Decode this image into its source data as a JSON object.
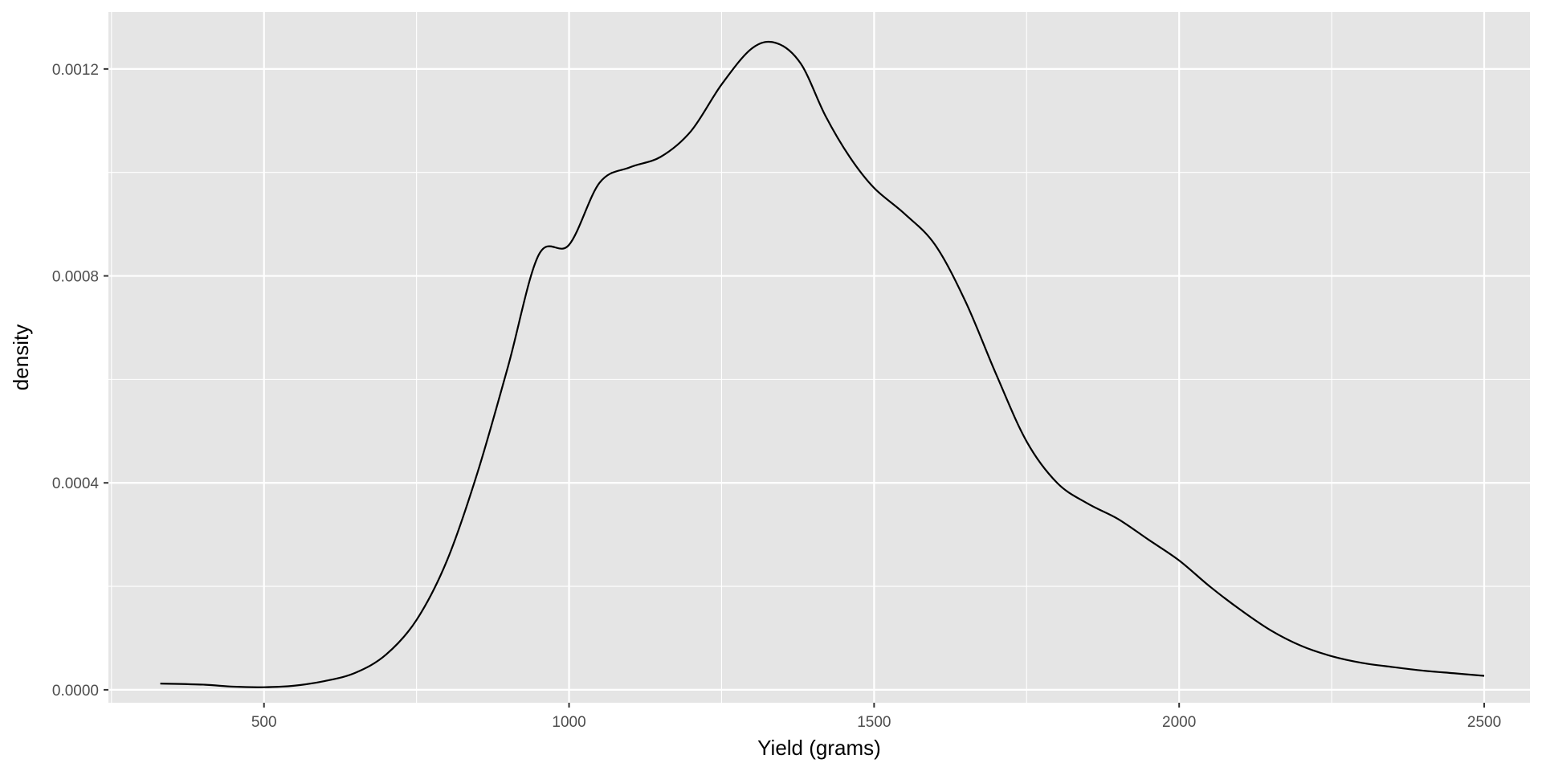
{
  "chart_data": {
    "type": "area",
    "subtype": "density",
    "xlabel": "Yield (grams)",
    "ylabel": "density",
    "xlim": [
      245,
      2575
    ],
    "ylim": [
      -2.5e-05,
      0.00131
    ],
    "x_ticks": [
      500,
      1000,
      1500,
      2000,
      2500
    ],
    "x_tick_labels": [
      "500",
      "1000",
      "1500",
      "2000",
      "2500"
    ],
    "y_ticks": [
      0.0,
      0.0004,
      0.0008,
      0.0012
    ],
    "y_tick_labels": [
      "0.0000",
      "0.0004",
      "0.0008",
      "0.0012"
    ],
    "grid": true,
    "legend": "none",
    "colors": {
      "panel": "#e5e5e5",
      "grid": "#ffffff",
      "line": "#000000",
      "text": "#4d4d4d"
    },
    "series": [
      {
        "x": [
          330,
          400,
          450,
          500,
          550,
          600,
          650,
          700,
          750,
          800,
          850,
          900,
          950,
          1000,
          1050,
          1100,
          1150,
          1200,
          1250,
          1300,
          1340,
          1380,
          1420,
          1460,
          1500,
          1550,
          1600,
          1650,
          1700,
          1750,
          1800,
          1850,
          1900,
          1950,
          2000,
          2050,
          2100,
          2150,
          2200,
          2250,
          2300,
          2350,
          2400,
          2450,
          2500
        ],
        "y": [
          1.2e-05,
          1e-05,
          6e-06,
          5e-06,
          8e-06,
          1.7e-05,
          3.3e-05,
          6.8e-05,
          0.000135,
          0.00025,
          0.00042,
          0.000625,
          0.00084,
          0.00086,
          0.00098,
          0.00101,
          0.00103,
          0.00108,
          0.00117,
          0.00124,
          0.00125,
          0.00121,
          0.00111,
          0.00103,
          0.00097,
          0.00092,
          0.00086,
          0.00075,
          0.00061,
          0.00048,
          0.0004,
          0.00036,
          0.00033,
          0.00029,
          0.00025,
          0.0002,
          0.000155,
          0.000115,
          8.5e-05,
          6.5e-05,
          5.2e-05,
          4.4e-05,
          3.7e-05,
          3.2e-05,
          2.7e-05
        ]
      }
    ]
  }
}
